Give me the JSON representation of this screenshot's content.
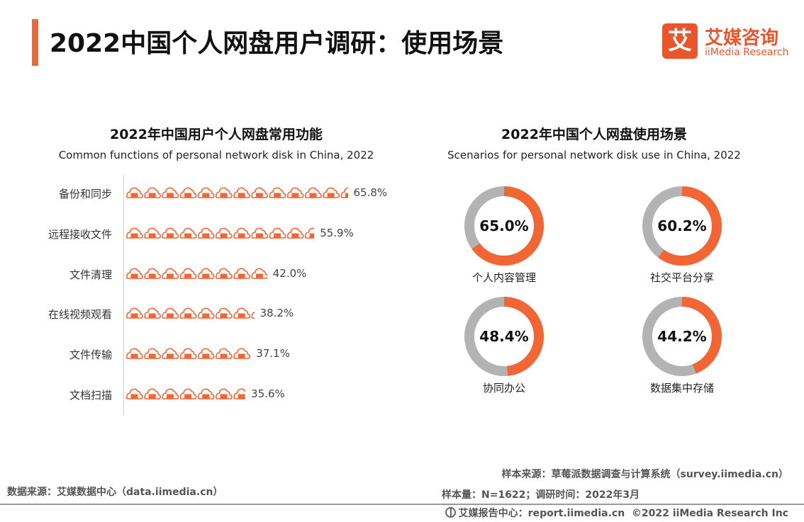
{
  "header": {
    "title": "2022中国个人网盘用户调研：使用场景",
    "logo_mark": "艾",
    "logo_cn": "艾媒咨询",
    "logo_en": "iiMedia Research"
  },
  "chart_data": [
    {
      "type": "bar",
      "title": "2022年中国用户个人网盘常用功能",
      "subtitle": "Common functions of personal network disk in China, 2022",
      "categories": [
        "备份和同步",
        "远程接收文件",
        "文件清理",
        "在线视频观看",
        "文件传输",
        "文档扫描"
      ],
      "values": [
        65.8,
        55.9,
        42.0,
        38.2,
        37.1,
        35.6
      ],
      "value_labels": [
        "65.8%",
        "55.9%",
        "42.0%",
        "38.2%",
        "37.1%",
        "35.6%"
      ],
      "unit": "%",
      "color": "#f26535"
    },
    {
      "type": "pie",
      "title": "2022年中国个人网盘使用场景",
      "subtitle": "Scenarios for personal network disk use in China, 2022",
      "categories": [
        "个人内容管理",
        "社交平台分享",
        "协同办公",
        "数据集中存储"
      ],
      "values": [
        65.0,
        60.2,
        48.4,
        44.2
      ],
      "value_labels": [
        "65.0%",
        "60.2%",
        "48.4%",
        "44.2%"
      ],
      "unit": "%",
      "colors": {
        "value": "#f26535",
        "rest": "#b3b3b3"
      }
    }
  ],
  "footer": {
    "source_left": "数据来源：艾媒数据中心（data.iimedia.cn）",
    "sample_source": "样本来源：草莓派数据调查与计算系统（survey.iimedia.cn）",
    "sample_size": "样本量：N=1622；调研时间：2022年3月",
    "report_center": "艾媒报告中心：report.iimedia.cn",
    "copyright": "©2022 iiMedia Research Inc"
  }
}
